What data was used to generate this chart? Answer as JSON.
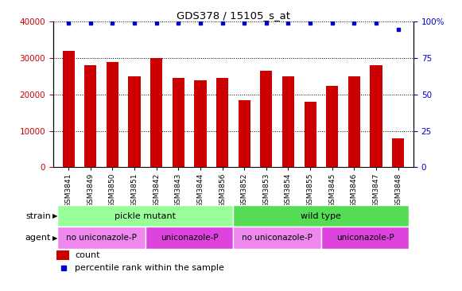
{
  "title": "GDS378 / 15105_s_at",
  "samples": [
    "GSM3841",
    "GSM3849",
    "GSM3850",
    "GSM3851",
    "GSM3842",
    "GSM3843",
    "GSM3844",
    "GSM3856",
    "GSM3852",
    "GSM3853",
    "GSM3854",
    "GSM3855",
    "GSM3845",
    "GSM3846",
    "GSM3847",
    "GSM3848"
  ],
  "counts": [
    32000,
    28000,
    29000,
    25000,
    30000,
    24500,
    24000,
    24500,
    18500,
    26500,
    25000,
    18000,
    22500,
    25000,
    28000,
    8000
  ],
  "percentiles": [
    99,
    99,
    99,
    99,
    99,
    99,
    99,
    99,
    99,
    99,
    99,
    99,
    99,
    99,
    99,
    95
  ],
  "bar_color": "#cc0000",
  "dot_color": "#0000cc",
  "ylim_left": [
    0,
    40000
  ],
  "ylim_right": [
    0,
    100
  ],
  "yticks_left": [
    0,
    10000,
    20000,
    30000,
    40000
  ],
  "yticks_right": [
    0,
    25,
    50,
    75,
    100
  ],
  "ytick_labels_left": [
    "0",
    "10000",
    "20000",
    "30000",
    "40000"
  ],
  "ytick_labels_right": [
    "0",
    "25",
    "50",
    "75",
    "100%"
  ],
  "strain_groups": [
    {
      "label": "pickle mutant",
      "start": 0,
      "end": 8,
      "color": "#99ff99"
    },
    {
      "label": "wild type",
      "start": 8,
      "end": 16,
      "color": "#55dd55"
    }
  ],
  "agent_groups": [
    {
      "label": "no uniconazole-P",
      "start": 0,
      "end": 4,
      "color": "#ee88ee"
    },
    {
      "label": "uniconazole-P",
      "start": 4,
      "end": 8,
      "color": "#dd44dd"
    },
    {
      "label": "no uniconazole-P",
      "start": 8,
      "end": 12,
      "color": "#ee88ee"
    },
    {
      "label": "uniconazole-P",
      "start": 12,
      "end": 16,
      "color": "#dd44dd"
    }
  ],
  "legend_count_color": "#cc0000",
  "legend_dot_color": "#0000cc",
  "grid_color": "#000000",
  "background_color": "#ffffff",
  "tick_label_color_left": "#cc0000",
  "tick_label_color_right": "#0000cc"
}
